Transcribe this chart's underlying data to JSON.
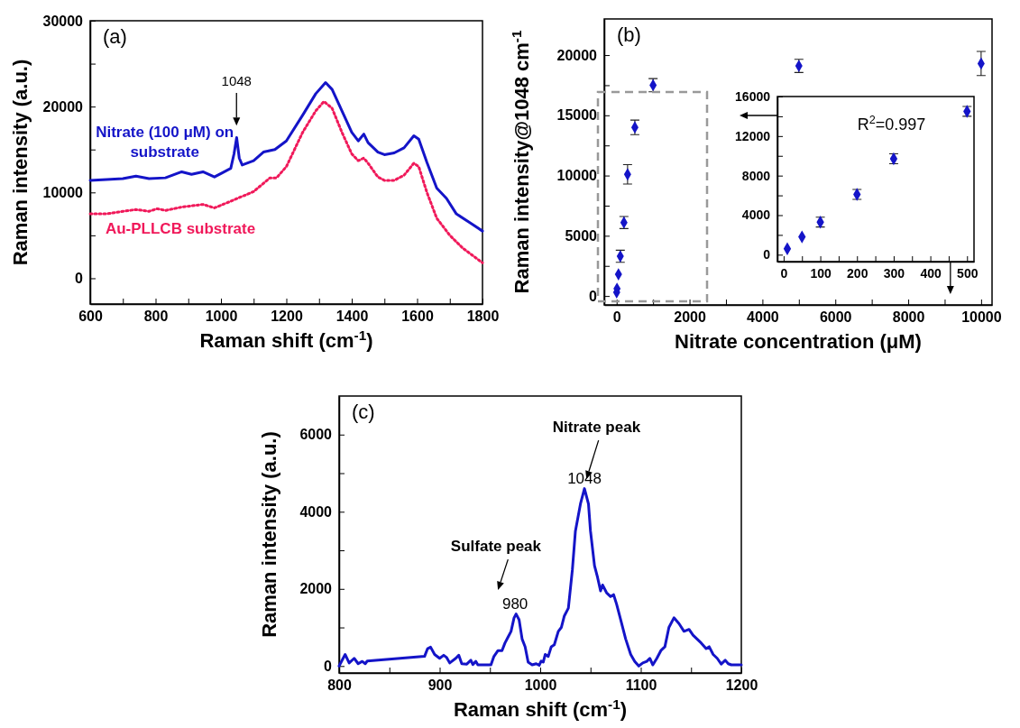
{
  "chart_data": [
    {
      "type": "line",
      "title": "(a)",
      "xlabel": "Raman shift (cm$^{-1}$)",
      "ylabel": "Raman intensity (a.u.)",
      "xlim": [
        600,
        1800
      ],
      "ylim": [
        -3000,
        30000
      ],
      "xticks": [
        600,
        {
          "value": 700,
          "label": null
        },
        800,
        {
          "value": 900,
          "label": null
        },
        1000,
        {
          "value": 1100,
          "label": null
        },
        1200,
        {
          "value": 1300,
          "label": null
        },
        1400,
        {
          "value": 1500,
          "label": null
        },
        1600,
        {
          "value": 1700,
          "label": null
        },
        1800
      ],
      "yticks": [
        0,
        {
          "value": 5000,
          "label": null
        },
        10000,
        {
          "value": 15000,
          "label": null
        },
        20000,
        {
          "value": 25000,
          "label": null
        },
        30000
      ],
      "legend": false,
      "annotations": [
        "1048"
      ],
      "series": [
        {
          "name": "Nitrate (100 μM) on substrate",
          "color": "#1414c8",
          "line_style": "solid",
          "x": [
            600,
            650,
            700,
            740,
            780,
            830,
            880,
            910,
            945,
            980,
            1000,
            1030,
            1040,
            1048,
            1056,
            1065,
            1100,
            1130,
            1165,
            1200,
            1250,
            1290,
            1320,
            1340,
            1370,
            1400,
            1420,
            1437,
            1450,
            1480,
            1500,
            1530,
            1560,
            1590,
            1605,
            1630,
            1660,
            1690,
            1720,
            1760,
            1800
          ],
          "values": [
            11400,
            11500,
            11600,
            11900,
            11600,
            11700,
            12400,
            12100,
            12400,
            11800,
            12200,
            12800,
            14500,
            16400,
            14000,
            13200,
            13700,
            14700,
            15000,
            16000,
            19000,
            21500,
            22800,
            22000,
            19500,
            17000,
            16000,
            16800,
            15800,
            14700,
            14400,
            14600,
            15200,
            16600,
            16200,
            13500,
            10500,
            9300,
            7500,
            6500,
            5500
          ]
        },
        {
          "name": "Au-PLLCB substrate",
          "color": "#f0195a",
          "line_style": "dotted",
          "x": [
            600,
            650,
            700,
            740,
            780,
            805,
            830,
            880,
            945,
            980,
            1000,
            1050,
            1100,
            1150,
            1170,
            1200,
            1250,
            1290,
            1315,
            1340,
            1370,
            1400,
            1420,
            1437,
            1450,
            1480,
            1500,
            1530,
            1560,
            1590,
            1605,
            1630,
            1660,
            1700,
            1740,
            1800
          ],
          "values": [
            7500,
            7500,
            7800,
            8000,
            7800,
            8100,
            7900,
            8300,
            8600,
            8200,
            8500,
            9300,
            10100,
            11700,
            11700,
            13000,
            17000,
            19500,
            20600,
            19800,
            17000,
            14500,
            13700,
            14000,
            13400,
            11800,
            11400,
            11400,
            12000,
            13400,
            13000,
            10000,
            7000,
            5000,
            3500,
            1800
          ]
        }
      ]
    },
    {
      "type": "scatter",
      "title": "(b)",
      "xlabel": "Nitrate concentration (μM)",
      "ylabel": "Raman intensity@1048 cm$^{-1}$",
      "xlim": [
        -340,
        10300
      ],
      "ylim": [
        -740,
        23000
      ],
      "xticks": [
        0,
        {
          "value": 1000,
          "label": null
        },
        2000,
        {
          "value": 3000,
          "label": null
        },
        4000,
        {
          "value": 5000,
          "label": null
        },
        6000,
        {
          "value": 7000,
          "label": null
        },
        8000,
        {
          "value": 9000,
          "label": null
        },
        10000
      ],
      "yticks": [
        0,
        {
          "value": 2500,
          "label": null
        },
        5000,
        {
          "value": 7500,
          "label": null
        },
        10000,
        {
          "value": 12500,
          "label": null
        },
        15000,
        {
          "value": 17500,
          "label": null
        },
        20000
      ],
      "marker": "diamond",
      "series": [
        {
          "color": "#1414c8",
          "x": [
            1,
            10,
            50,
            100,
            200,
            300,
            500,
            1000,
            5000,
            10000
          ],
          "values": [
            300,
            600,
            1800,
            3300,
            6100,
            10100,
            14000,
            17500,
            19100,
            19300
          ],
          "errors": [
            null,
            null,
            null,
            500,
            500,
            800,
            600,
            550,
            550,
            1000
          ]
        }
      ]
    },
    {
      "type": "scatter",
      "xlim": [
        -17,
        519
      ],
      "ylim": [
        -700,
        16000
      ],
      "xticks": [
        0,
        {
          "value": 50,
          "label": null
        },
        100,
        {
          "value": 150,
          "label": null
        },
        200,
        {
          "value": 250,
          "label": null
        },
        300,
        {
          "value": 350,
          "label": null
        },
        400,
        {
          "value": 450,
          "label": null
        },
        500
      ],
      "yticks": [
        0,
        {
          "value": 2000,
          "label": null
        },
        4000,
        {
          "value": 6000,
          "label": null
        },
        8000,
        {
          "value": 10000,
          "label": null
        },
        12000,
        {
          "value": 14000,
          "label": null
        },
        16000
      ],
      "marker": "diamond",
      "annotations": [
        "R$^{2}$=0.997"
      ],
      "series": [
        {
          "color": "#1414c8",
          "x": [
            10,
            50,
            100,
            200,
            300,
            500
          ],
          "values": [
            600,
            1800,
            3300,
            6100,
            9700,
            14500
          ],
          "errors": [
            null,
            null,
            500,
            500,
            500,
            500
          ]
        }
      ]
    },
    {
      "type": "line",
      "title": "(c)",
      "xlabel": "Raman shift (cm$^{-1}$)",
      "ylabel": "Raman intensity (a.u.)",
      "xlim": [
        800,
        1200
      ],
      "ylim": [
        -180,
        7000
      ],
      "xticks": [
        800,
        {
          "value": 850,
          "label": null
        },
        900,
        {
          "value": 950,
          "label": null
        },
        1000,
        {
          "value": 1050,
          "label": null
        },
        1100,
        {
          "value": 1150,
          "label": null
        },
        1200
      ],
      "yticks": [
        0,
        {
          "value": 1000,
          "label": null
        },
        2000,
        {
          "value": 3000,
          "label": null
        },
        4000,
        {
          "value": 5000,
          "label": null
        },
        6000
      ],
      "annotations": [
        "Sulfate peak",
        {
          "text": "980",
          "x": 975,
          "y": 1350
        },
        "Nitrate peak",
        {
          "text": "1048",
          "x": 1044,
          "y": 4600
        }
      ],
      "series": [
        {
          "color": "#1414c8",
          "x": [
            800,
            806,
            810,
            815,
            819,
            823,
            826,
            828,
            885,
            888,
            891,
            895,
            900,
            904,
            907,
            910,
            916,
            919,
            922,
            927,
            931,
            933,
            936,
            938,
            951,
            954,
            958,
            962,
            965,
            968,
            971,
            974,
            976,
            979,
            982,
            985,
            988,
            992,
            996,
            999,
            1001,
            1003,
            1005,
            1008,
            1011,
            1014,
            1018,
            1021,
            1024,
            1028,
            1032,
            1035,
            1040,
            1044,
            1048,
            1050,
            1054,
            1057,
            1060,
            1062,
            1066,
            1070,
            1073,
            1076,
            1080,
            1085,
            1090,
            1094,
            1098,
            1102,
            1106,
            1109,
            1112,
            1116,
            1120,
            1124,
            1128,
            1133,
            1138,
            1143,
            1148,
            1152,
            1156,
            1160,
            1165,
            1168,
            1172,
            1176,
            1180,
            1184,
            1187,
            1190,
            1200
          ],
          "values": [
            0,
            300,
            80,
            200,
            60,
            120,
            60,
            130,
            250,
            450,
            490,
            300,
            200,
            280,
            220,
            80,
            200,
            280,
            60,
            50,
            150,
            40,
            120,
            30,
            30,
            250,
            400,
            400,
            600,
            750,
            900,
            1250,
            1350,
            1200,
            700,
            500,
            100,
            30,
            60,
            20,
            130,
            100,
            300,
            250,
            500,
            550,
            900,
            1000,
            1300,
            1500,
            2500,
            3500,
            4200,
            4600,
            4200,
            3500,
            2600,
            2300,
            1950,
            2100,
            1900,
            1800,
            1850,
            1600,
            1200,
            700,
            300,
            120,
            0,
            80,
            120,
            200,
            30,
            200,
            400,
            500,
            1000,
            1250,
            1100,
            900,
            950,
            800,
            700,
            600,
            450,
            500,
            300,
            200,
            50,
            150,
            60,
            30,
            30
          ]
        }
      ]
    }
  ]
}
